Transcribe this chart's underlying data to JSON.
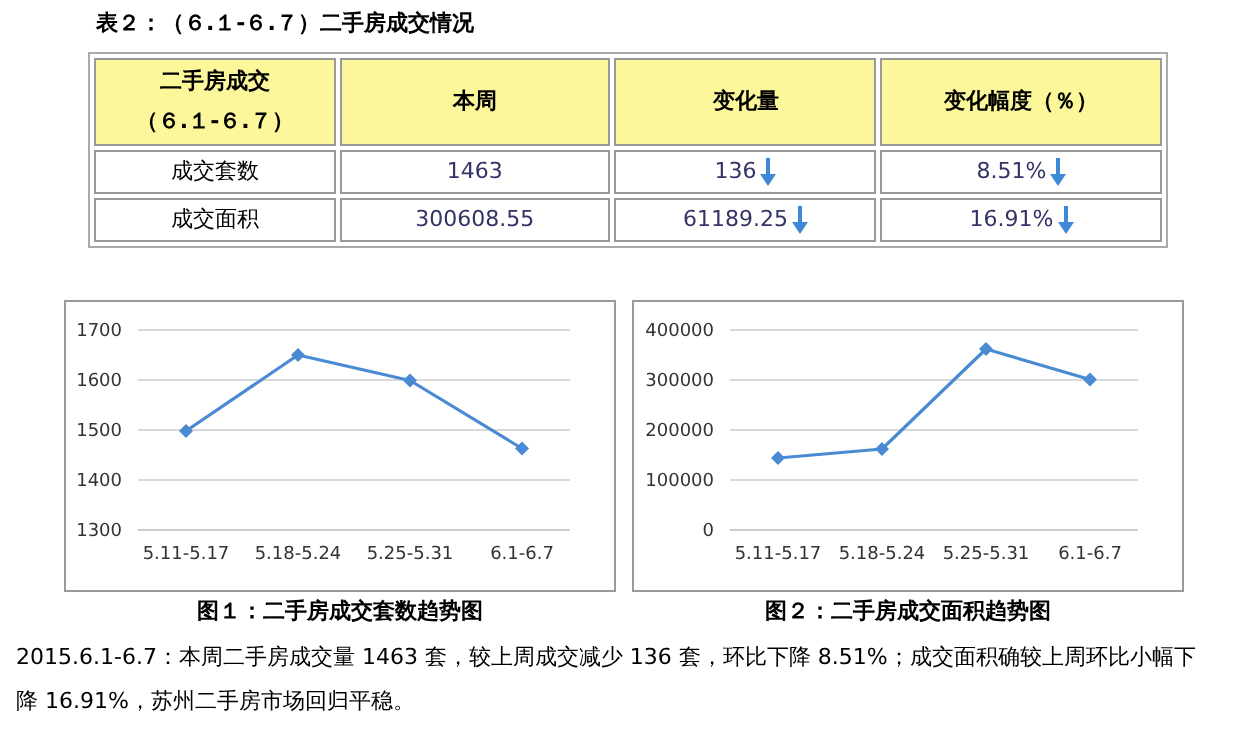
{
  "chart_data": [
    {
      "type": "other",
      "title": "表２：（６.１-６.７）二手房成交情况",
      "annotations": [
        "二手房成交",
        "（６.１-６.７）",
        "本周",
        "变化量",
        "变化幅度（％）",
        "成交套数",
        "1463",
        "136",
        "8.51%",
        "成交面积",
        "300608.55",
        "61189.25",
        "16.91%"
      ]
    },
    {
      "type": "line",
      "title": "图１：二手房成交套数趋势图",
      "categories": [
        "5.11-5.17",
        "5.18-5.24",
        "5.25-5.31",
        "6.1-6.7"
      ],
      "series": [
        {
          "color": "#4a8ad2",
          "values": [
            1498,
            1650,
            1599,
            1463
          ]
        }
      ],
      "ylim": [
        1300,
        1700
      ],
      "yticks": [
        1300,
        1400,
        1500,
        1600,
        1700
      ],
      "grid": "y",
      "marker": "diamond"
    },
    {
      "type": "line",
      "title": "图２：二手房成交面积趋势图",
      "categories": [
        "5.11-5.17",
        "5.18-5.24",
        "5.25-5.31",
        "6.1-6.7"
      ],
      "series": [
        {
          "color": "#4a8ad2",
          "values": [
            144000,
            162000,
            362000,
            301000
          ]
        }
      ],
      "ylim": [
        0,
        400000
      ],
      "yticks": [
        0,
        100000,
        200000,
        300000,
        400000
      ],
      "grid": "y",
      "marker": "diamond"
    },
    {
      "type": "other",
      "annotations": [
        "2015.6.1-6.7：本周二手房成交量 1463 套，较上周成交减少 136 套，环比下降 8.51%；成交面积确较上周环比小幅下降 16.91%，苏州二手房市场回归平稳。"
      ]
    }
  ]
}
